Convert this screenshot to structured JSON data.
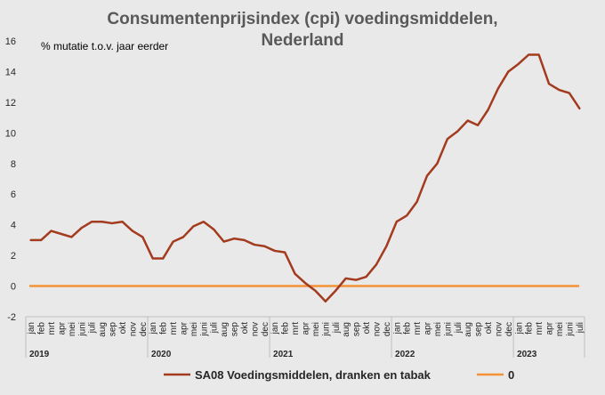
{
  "chart_data": {
    "type": "line",
    "title_lines": [
      "Consumentenprijsindex (cpi) voedingsmiddelen,",
      "Nederland"
    ],
    "annotation": "% mutatie t.o.v. jaar eerder",
    "ylim": [
      -2,
      16
    ],
    "yticks": [
      "-2",
      "0",
      "2",
      "4",
      "6",
      "8",
      "10",
      "12",
      "14",
      "16"
    ],
    "grid": false,
    "legend_position": "bottom",
    "months": [
      "jan",
      "feb",
      "mrt",
      "apr",
      "mei",
      "juni",
      "juli",
      "aug",
      "sep",
      "okt",
      "nov",
      "dec"
    ],
    "categories": [
      "jan",
      "feb",
      "mrt",
      "apr",
      "mei",
      "juni",
      "juli",
      "aug",
      "sep",
      "okt",
      "nov",
      "dec",
      "jan",
      "feb",
      "mrt",
      "apr",
      "mei",
      "juni",
      "juli",
      "aug",
      "sep",
      "okt",
      "nov",
      "dec",
      "jan",
      "feb",
      "mrt",
      "apr",
      "mei",
      "juni",
      "juli",
      "aug",
      "sep",
      "okt",
      "nov",
      "dec",
      "jan",
      "feb",
      "mrt",
      "apr",
      "mei",
      "juni",
      "juli",
      "aug",
      "sep",
      "okt",
      "nov",
      "dec",
      "jan",
      "feb",
      "mrt",
      "apr",
      "mei",
      "juni",
      "juli"
    ],
    "years": [
      "2019",
      "2020",
      "2021",
      "2022",
      "2023"
    ],
    "series": [
      {
        "name": "SA08 Voedingsmiddelen, dranken en tabak",
        "color": "#a33b1f",
        "values": [
          3.0,
          3.0,
          3.6,
          3.4,
          3.2,
          3.8,
          4.2,
          4.2,
          4.1,
          4.2,
          3.6,
          3.2,
          1.8,
          1.8,
          2.9,
          3.2,
          3.9,
          4.2,
          3.7,
          2.9,
          3.1,
          3.0,
          2.7,
          2.6,
          2.3,
          2.2,
          0.8,
          0.2,
          -0.3,
          -1.0,
          -0.3,
          0.5,
          0.4,
          0.6,
          1.4,
          2.6,
          4.2,
          4.6,
          5.5,
          7.2,
          8.0,
          9.6,
          10.1,
          10.8,
          10.5,
          11.5,
          12.9,
          14.0,
          14.5,
          15.1,
          15.1,
          13.2,
          12.8,
          12.6,
          11.6
        ]
      },
      {
        "name": "0",
        "color": "#f39237",
        "values": [
          0,
          0,
          0,
          0,
          0,
          0,
          0,
          0,
          0,
          0,
          0,
          0,
          0,
          0,
          0,
          0,
          0,
          0,
          0,
          0,
          0,
          0,
          0,
          0,
          0,
          0,
          0,
          0,
          0,
          0,
          0,
          0,
          0,
          0,
          0,
          0,
          0,
          0,
          0,
          0,
          0,
          0,
          0,
          0,
          0,
          0,
          0,
          0,
          0,
          0,
          0,
          0,
          0,
          0,
          0
        ]
      }
    ]
  }
}
